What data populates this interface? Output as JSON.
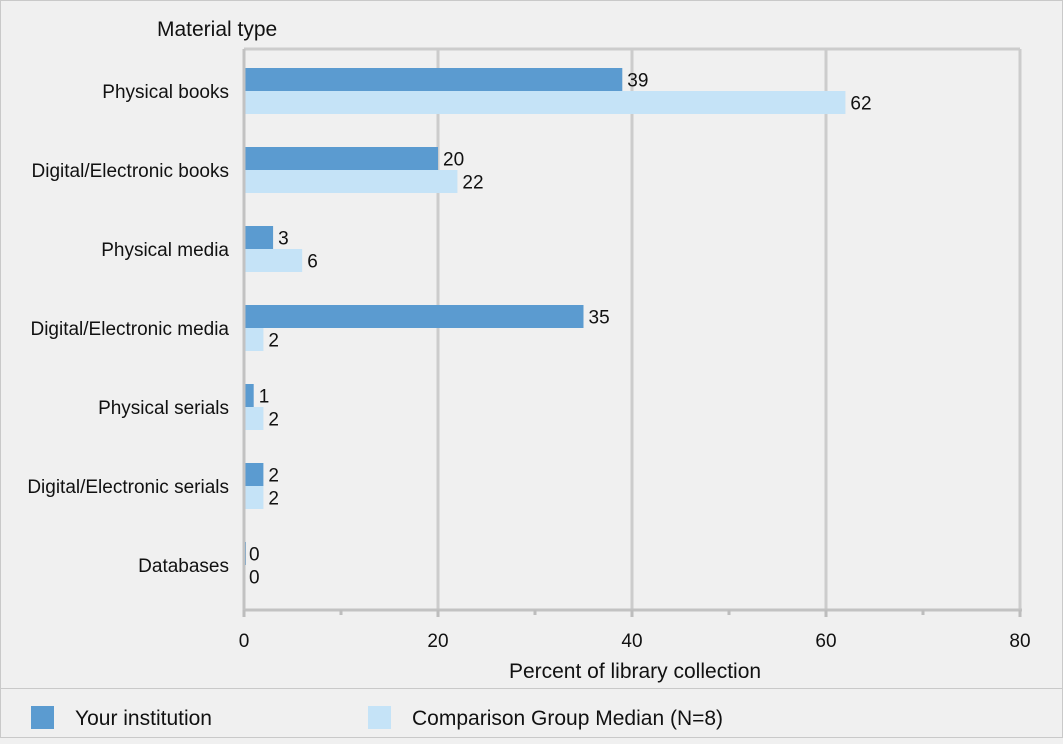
{
  "chart_data": {
    "type": "bar",
    "orientation": "horizontal",
    "title": "Material type",
    "categories": [
      "Physical books",
      "Digital/Electronic books",
      "Physical media",
      "Digital/Electronic media",
      "Physical serials",
      "Digital/Electronic serials",
      "Databases"
    ],
    "series": [
      {
        "name": "Your institution",
        "color": "#5b9bd0",
        "values": [
          39,
          20,
          3,
          35,
          1,
          2,
          0
        ]
      },
      {
        "name": "Comparison Group Median (N=8)",
        "color": "#c5e3f7",
        "values": [
          62,
          22,
          6,
          2,
          2,
          2,
          0
        ]
      }
    ],
    "xlabel": "Percent of library collection",
    "ylabel": "Material type",
    "xlim": [
      0,
      80
    ],
    "xticks": [
      0,
      20,
      40,
      60,
      80
    ],
    "xtick_labels": [
      "0",
      "20",
      "40",
      "60",
      "80"
    ],
    "minor_xticks": [
      10,
      30,
      50,
      70
    ],
    "grid": true,
    "legend_position": "bottom"
  }
}
